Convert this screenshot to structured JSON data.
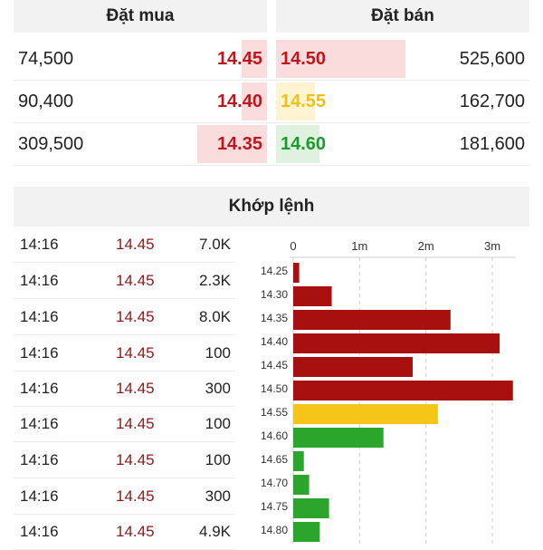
{
  "orderbook": {
    "buy_title": "Đặt mua",
    "sell_title": "Đặt bán",
    "rows": [
      {
        "buy_volume": "74,500",
        "buy_price": "14.45",
        "buy_depth": 0.1,
        "sell_price": "14.50",
        "sell_color": "#c0151d",
        "sell_bg": "#fbdcdc",
        "sell_depth": 0.5,
        "sell_volume": "525,600"
      },
      {
        "buy_volume": "90,400",
        "buy_price": "14.40",
        "buy_depth": 0.1,
        "sell_price": "14.55",
        "sell_color": "#f0c01a",
        "sell_bg": "#fff4d2",
        "sell_depth": 0.15,
        "sell_volume": "162,700"
      },
      {
        "buy_volume": "309,500",
        "buy_price": "14.35",
        "buy_depth": 0.27,
        "sell_price": "14.60",
        "sell_color": "#1d9a2c",
        "sell_bg": "#dff2df",
        "sell_depth": 0.17,
        "sell_volume": "181,600"
      }
    ]
  },
  "matched": {
    "title": "Khớp lệnh",
    "trades": [
      {
        "time": "14:16",
        "price": "14.45",
        "volume": "7.0K"
      },
      {
        "time": "14:16",
        "price": "14.45",
        "volume": "2.3K"
      },
      {
        "time": "14:16",
        "price": "14.45",
        "volume": "8.0K"
      },
      {
        "time": "14:16",
        "price": "14.45",
        "volume": "100"
      },
      {
        "time": "14:16",
        "price": "14.45",
        "volume": "300"
      },
      {
        "time": "14:16",
        "price": "14.45",
        "volume": "100"
      },
      {
        "time": "14:16",
        "price": "14.45",
        "volume": "100"
      },
      {
        "time": "14:16",
        "price": "14.45",
        "volume": "300"
      },
      {
        "time": "14:16",
        "price": "14.45",
        "volume": "4.9K"
      }
    ]
  },
  "colors": {
    "buy_price": "#c0151d",
    "trade_price": "#8b1a1a",
    "buy_depth_bg": "#fbdcdc",
    "bar_red": "#a80f0f",
    "bar_yellow": "#f5c518",
    "bar_green": "#2ca52c"
  },
  "chart_data": {
    "type": "bar",
    "orientation": "horizontal",
    "x_ticks": [
      "0",
      "1m",
      "2m",
      "3m"
    ],
    "xlim": [
      0,
      3300000
    ],
    "categories": [
      "14.25",
      "14.30",
      "14.35",
      "14.40",
      "14.45",
      "14.50",
      "14.55",
      "14.60",
      "14.65",
      "14.70",
      "14.75",
      "14.80"
    ],
    "values": [
      90000,
      580000,
      2370000,
      3110000,
      1800000,
      3310000,
      2180000,
      1360000,
      160000,
      240000,
      540000,
      400000
    ],
    "colors": [
      "red",
      "red",
      "red",
      "red",
      "red",
      "red",
      "yellow",
      "green",
      "green",
      "green",
      "green",
      "green"
    ],
    "grid": "vertical dashed"
  }
}
